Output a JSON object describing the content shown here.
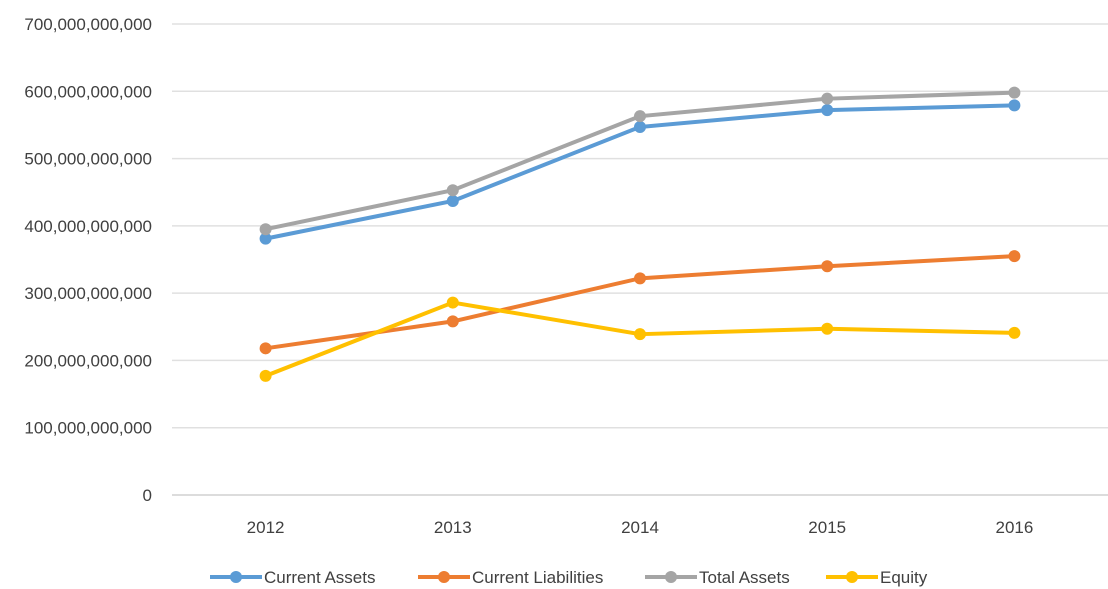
{
  "chart_data": {
    "type": "line",
    "title": "",
    "xlabel": "",
    "ylabel": "",
    "categories": [
      "2012",
      "2013",
      "2014",
      "2015",
      "2016"
    ],
    "ylim": [
      0,
      700000000000
    ],
    "y_ticks": [
      0,
      100000000000,
      200000000000,
      300000000000,
      400000000000,
      500000000000,
      600000000000,
      700000000000
    ],
    "y_tick_labels": [
      "0",
      "100,000,000,000",
      "200,000,000,000",
      "300,000,000,000",
      "400,000,000,000",
      "500,000,000,000",
      "600,000,000,000",
      "700,000,000,000"
    ],
    "grid": true,
    "legend_position": "bottom",
    "series": [
      {
        "name": "Current Assets",
        "color": "#5B9BD5",
        "values": [
          381000000000,
          437000000000,
          547000000000,
          572000000000,
          579000000000
        ]
      },
      {
        "name": "Current Liabilities",
        "color": "#ED7D31",
        "values": [
          218000000000,
          258000000000,
          322000000000,
          340000000000,
          355000000000
        ]
      },
      {
        "name": "Total Assets",
        "color": "#A5A5A5",
        "values": [
          395000000000,
          453000000000,
          563000000000,
          589000000000,
          598000000000
        ]
      },
      {
        "name": "Equity",
        "color": "#FFC000",
        "values": [
          177000000000,
          286000000000,
          239000000000,
          247000000000,
          241000000000
        ]
      }
    ]
  }
}
